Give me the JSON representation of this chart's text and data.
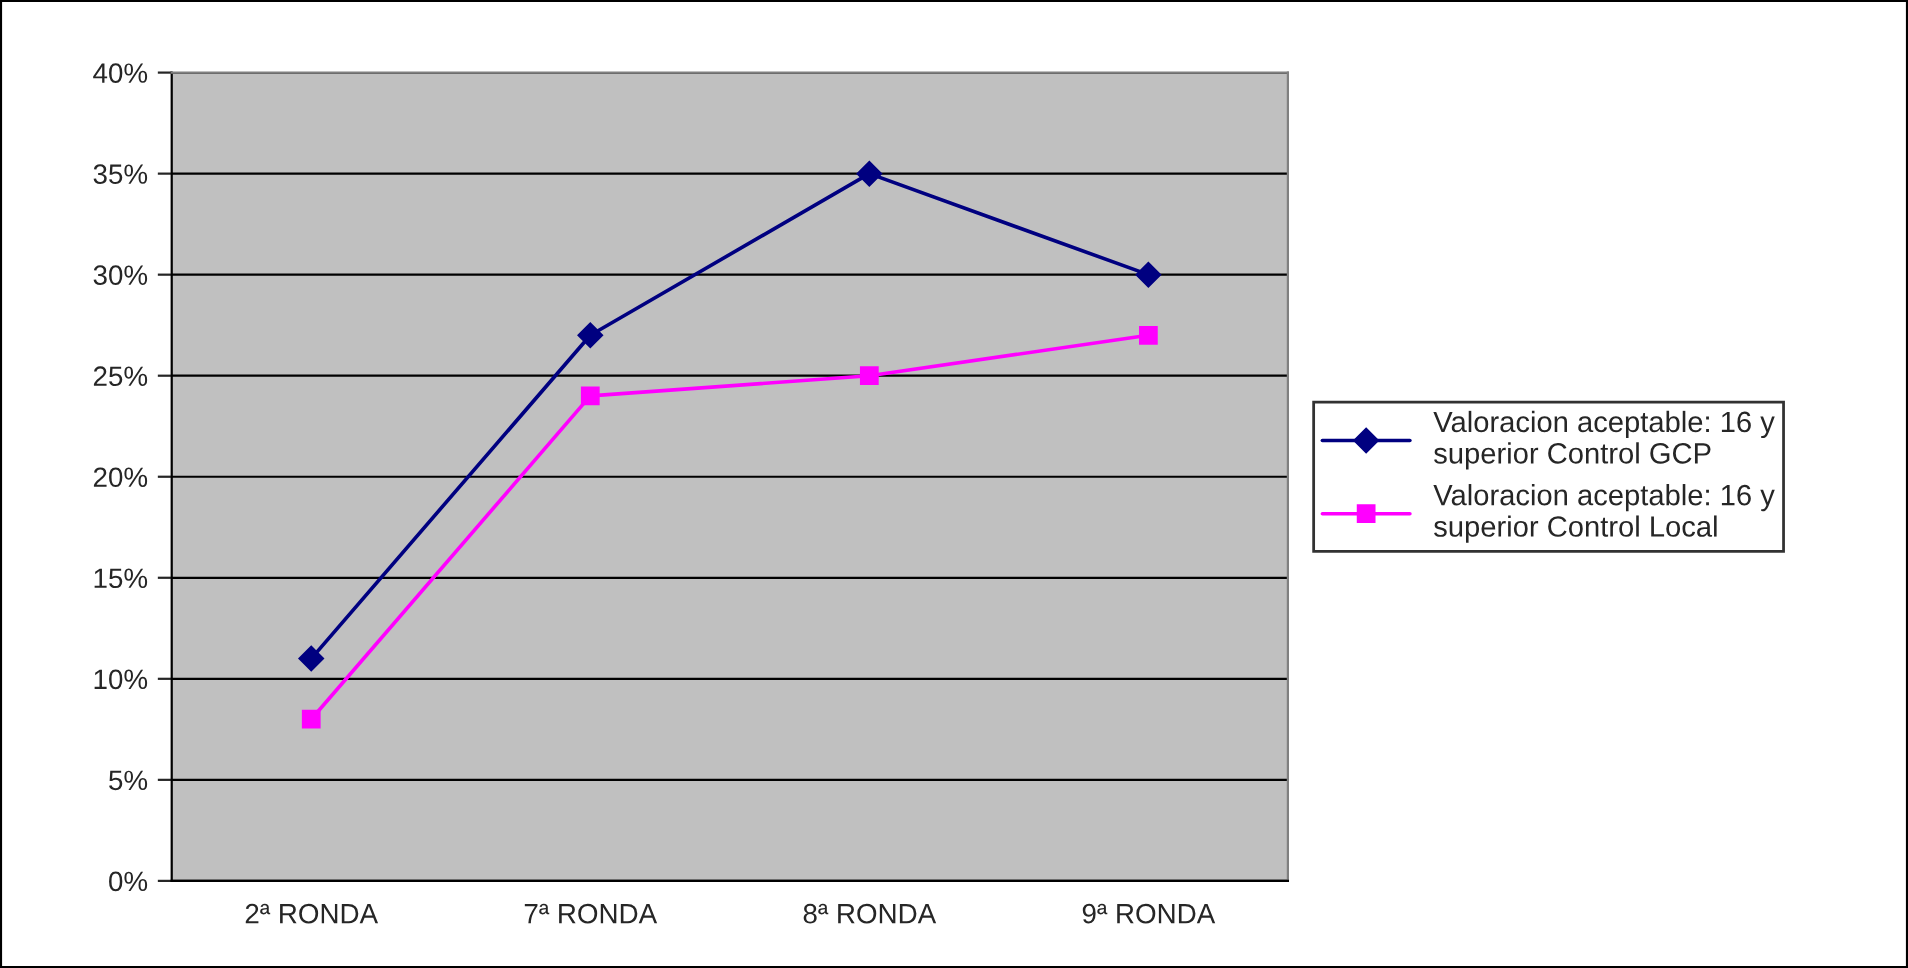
{
  "chart_data": {
    "type": "line",
    "categories": [
      "2ª RONDA",
      "7ª RONDA",
      "8ª RONDA",
      "9ª RONDA"
    ],
    "series": [
      {
        "name": "Valoracion aceptable: 16 y\nsuperior Control GCP",
        "color": "#000080",
        "marker": "diamond",
        "values": [
          11,
          27,
          35,
          30
        ]
      },
      {
        "name": "Valoracion aceptable: 16 y\nsuperior Control Local",
        "color": "#ff00ff",
        "marker": "square",
        "values": [
          8,
          24,
          25,
          27
        ]
      }
    ],
    "ylim": [
      0,
      40
    ],
    "yticks": [
      {
        "value": 0,
        "label": "0%"
      },
      {
        "value": 5,
        "label": "5%"
      },
      {
        "value": 10,
        "label": "10%"
      },
      {
        "value": 15,
        "label": "15%"
      },
      {
        "value": 20,
        "label": "20%"
      },
      {
        "value": 25,
        "label": "25%"
      },
      {
        "value": 30,
        "label": "30%"
      },
      {
        "value": 35,
        "label": "35%"
      },
      {
        "value": 40,
        "label": "40%"
      }
    ],
    "grid": "y",
    "legend": "right",
    "line_style": "solid"
  }
}
